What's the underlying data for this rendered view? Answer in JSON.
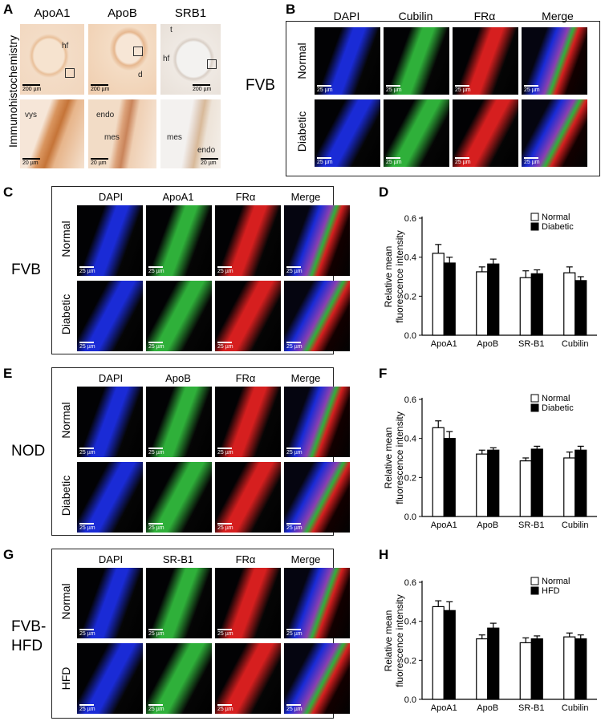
{
  "panels": {
    "A": "A",
    "B": "B",
    "C": "C",
    "D": "D",
    "E": "E",
    "F": "F",
    "G": "G",
    "H": "H"
  },
  "panelA": {
    "side_label": "Immunohistochemistry",
    "columns": [
      "ApoA1",
      "ApoB",
      "SRB1"
    ],
    "top_labels": {
      "hf1": "hf",
      "d": "d",
      "t": "t",
      "hf3": "hf"
    },
    "bottom_labels": {
      "vys": "vys",
      "endo": "endo",
      "mes": "mes",
      "mes3": "mes",
      "endo3": "endo"
    },
    "scale_top": "200 µm",
    "scale_bottom": "20 µm"
  },
  "panelB": {
    "strain": "FVB",
    "columns": [
      "DAPI",
      "Cubilin",
      "FRα",
      "Merge"
    ],
    "rows": [
      "Normal",
      "Diabetic"
    ],
    "scale": "25 µm"
  },
  "panelC": {
    "strain": "FVB",
    "columns": [
      "DAPI",
      "ApoA1",
      "FRα",
      "Merge"
    ],
    "rows": [
      "Normal",
      "Diabetic"
    ],
    "scale": "25 µm"
  },
  "panelE": {
    "strain": "NOD",
    "columns": [
      "DAPI",
      "ApoB",
      "FRα",
      "Merge"
    ],
    "rows": [
      "Normal",
      "Diabetic"
    ],
    "scale": "25 µm"
  },
  "panelG": {
    "strain_line1": "FVB-",
    "strain_line2": "HFD",
    "columns": [
      "DAPI",
      "SR-B1",
      "FRα",
      "Merge"
    ],
    "rows": [
      "Normal",
      "HFD"
    ],
    "scale": "25 µm"
  },
  "colors": {
    "normal_fill": "#ffffff",
    "treated_fill": "#000000",
    "dapi": "#1a2bd6",
    "green": "#2fb03a",
    "red": "#d61f1f"
  },
  "chart_data": [
    {
      "panel": "D",
      "type": "bar",
      "categories": [
        "ApoA1",
        "ApoB",
        "SR-B1",
        "Cubilin"
      ],
      "ylabel_line1": "Relative mean",
      "ylabel_line2": "fluorescence intensity",
      "ylim": [
        0,
        0.6
      ],
      "yticks": [
        "0.0",
        "0.2",
        "0.4",
        "0.6"
      ],
      "legend_position": "top-right",
      "series": [
        {
          "name": "Normal",
          "values": [
            0.42,
            0.325,
            0.295,
            0.32
          ],
          "errors": [
            0.045,
            0.025,
            0.035,
            0.03
          ]
        },
        {
          "name": "Diabetic",
          "values": [
            0.37,
            0.365,
            0.315,
            0.28
          ],
          "errors": [
            0.03,
            0.025,
            0.02,
            0.02
          ]
        }
      ]
    },
    {
      "panel": "F",
      "type": "bar",
      "categories": [
        "ApoA1",
        "ApoB",
        "SR-B1",
        "Cubilin"
      ],
      "ylabel_line1": "Relative mean",
      "ylabel_line2": "fluorescence intensity",
      "ylim": [
        0,
        0.6
      ],
      "yticks": [
        "0.0",
        "0.2",
        "0.4",
        "0.6"
      ],
      "legend_position": "top-right",
      "series": [
        {
          "name": "Normal",
          "values": [
            0.455,
            0.32,
            0.285,
            0.3
          ],
          "errors": [
            0.035,
            0.02,
            0.015,
            0.03
          ]
        },
        {
          "name": "Diabetic",
          "values": [
            0.4,
            0.34,
            0.345,
            0.34
          ],
          "errors": [
            0.035,
            0.012,
            0.015,
            0.02
          ]
        }
      ]
    },
    {
      "panel": "H",
      "type": "bar",
      "categories": [
        "ApoA1",
        "ApoB",
        "SR-B1",
        "Cubilin"
      ],
      "ylabel_line1": "Relative mean",
      "ylabel_line2": "fluorescence intensity",
      "ylim": [
        0,
        0.6
      ],
      "yticks": [
        "0.0",
        "0.2",
        "0.4",
        "0.6"
      ],
      "legend_position": "top-right",
      "series": [
        {
          "name": "Normal",
          "values": [
            0.475,
            0.31,
            0.29,
            0.32
          ],
          "errors": [
            0.03,
            0.02,
            0.025,
            0.02
          ]
        },
        {
          "name": "HFD",
          "values": [
            0.455,
            0.365,
            0.31,
            0.31
          ],
          "errors": [
            0.045,
            0.025,
            0.015,
            0.02
          ]
        }
      ]
    }
  ]
}
